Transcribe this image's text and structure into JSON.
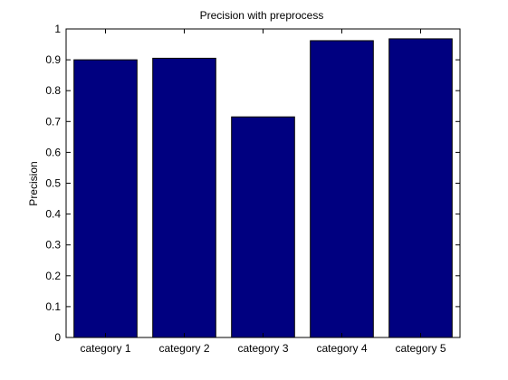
{
  "chart_data": {
    "type": "bar",
    "title": "Precision with preprocess",
    "xlabel": "",
    "ylabel": "Precision",
    "categories": [
      "category 1",
      "category 2",
      "category 3",
      "category 4",
      "category 5"
    ],
    "values": [
      0.9,
      0.905,
      0.715,
      0.962,
      0.968
    ],
    "ylim": [
      0,
      1
    ],
    "yticks": [
      "0",
      "0.1",
      "0.2",
      "0.3",
      "0.4",
      "0.5",
      "0.6",
      "0.7",
      "0.8",
      "0.9",
      "1"
    ],
    "grid": false,
    "legend": "none",
    "colors": {
      "bar_fill": "#000080",
      "bar_stroke": "#000000",
      "axes": "#000000",
      "background": "#ffffff"
    }
  }
}
